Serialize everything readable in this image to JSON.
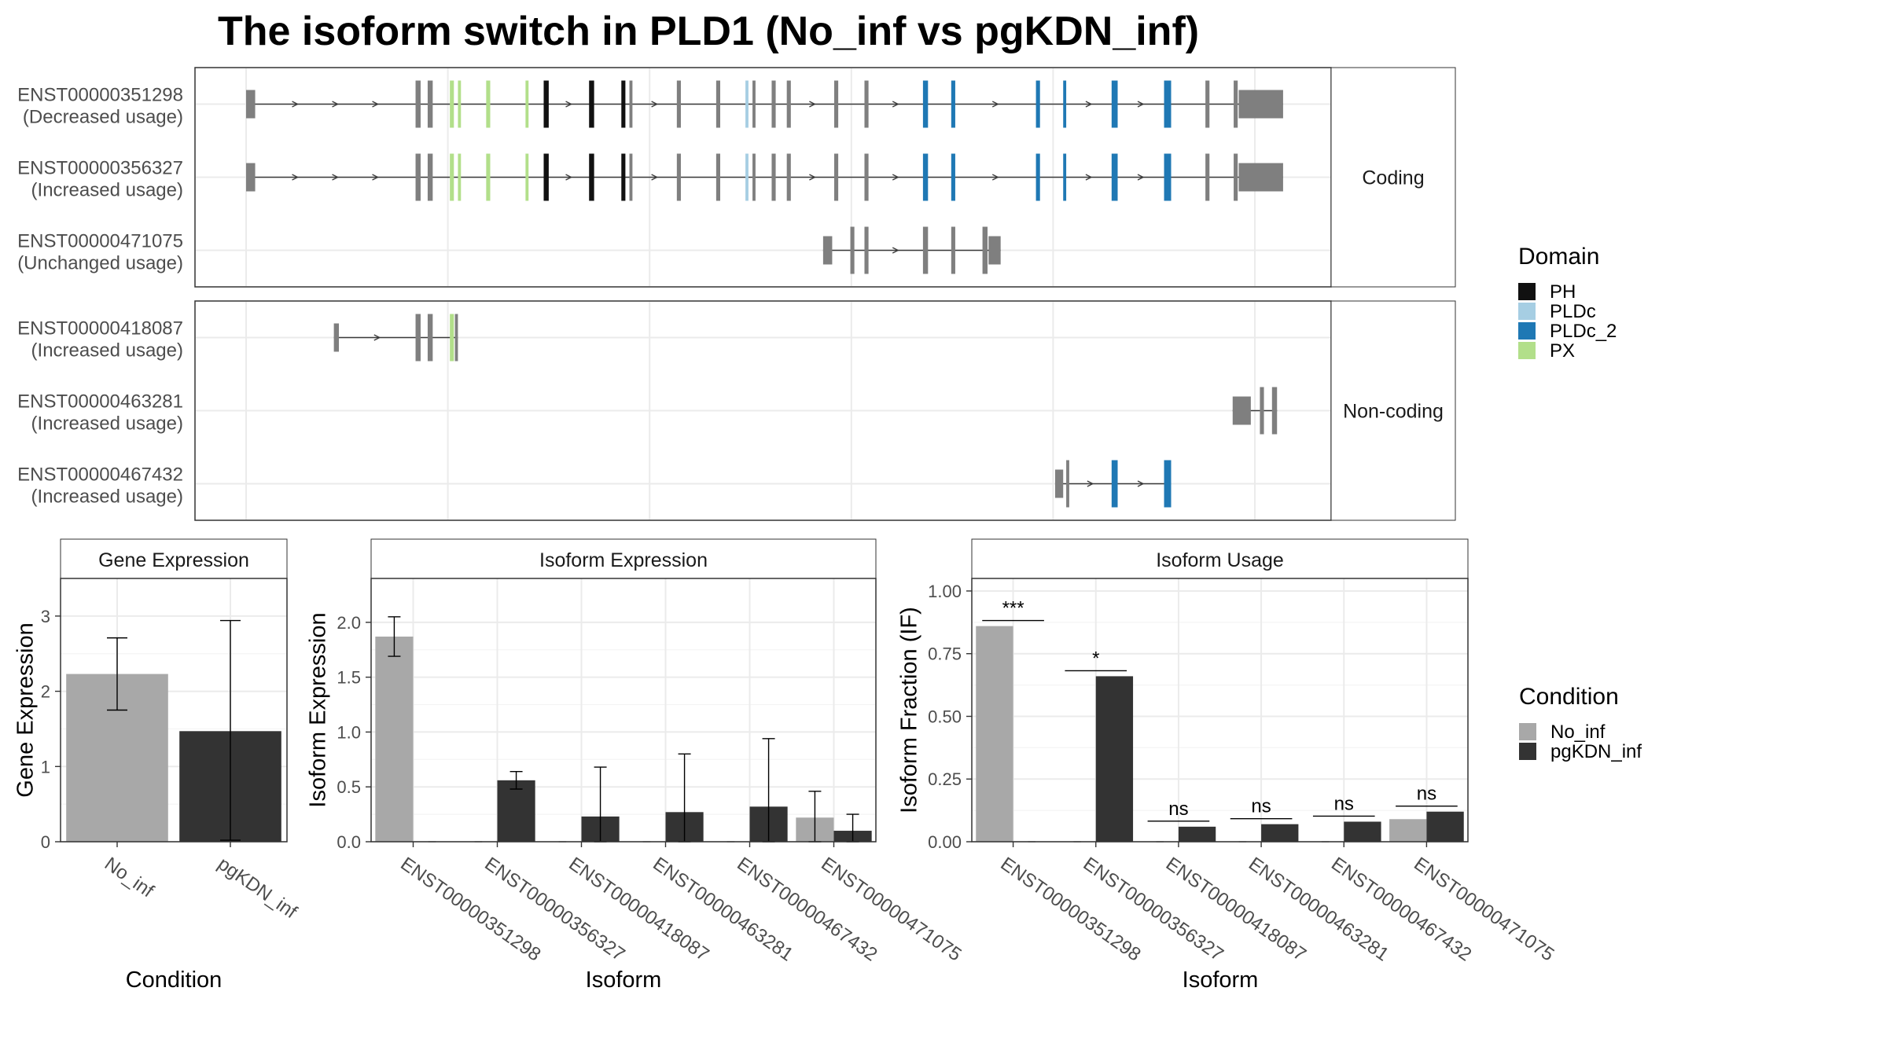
{
  "title": "The isoform switch in PLD1 (No_inf vs pgKDN_inf)",
  "colors": {
    "No_inf": "#a8a8a8",
    "pgKDN_inf": "#333333",
    "exon": "#7f7f7f",
    "intron": "#3a3a3a",
    "grid": "#ebebeb",
    "panel_border": "#333333",
    "strip_bg": "#ffffff",
    "PH": "#111111",
    "PLDc": "#a6cee3",
    "PLDc_2": "#1f78b4",
    "PX": "#b2df8a"
  },
  "structure": {
    "groups": [
      {
        "name": "Coding",
        "transcripts": [
          {
            "id": "ENST00000351298",
            "usage": "(Decreased usage)",
            "exons": [
              [
                0.0,
                0.9,
                "thin"
              ],
              [
                16.8,
                17.3,
                "n"
              ],
              [
                18.0,
                18.5,
                "n"
              ],
              [
                20.2,
                20.6,
                "PX"
              ],
              [
                21.0,
                21.3,
                "PX"
              ],
              [
                23.8,
                24.2,
                "PX"
              ],
              [
                27.7,
                28.0,
                "PX"
              ],
              [
                29.5,
                30.0,
                "PH"
              ],
              [
                34.0,
                34.5,
                "PH"
              ],
              [
                37.2,
                37.6,
                "PH"
              ],
              [
                38.0,
                38.3,
                "n"
              ],
              [
                42.7,
                43.1,
                "n"
              ],
              [
                46.6,
                47.0,
                "n"
              ],
              [
                49.5,
                49.8,
                "PLDc"
              ],
              [
                50.2,
                50.5,
                "n"
              ],
              [
                52.1,
                52.5,
                "n"
              ],
              [
                53.6,
                54.0,
                "n"
              ],
              [
                58.3,
                58.7,
                "n"
              ],
              [
                61.3,
                61.7,
                "n"
              ],
              [
                67.1,
                67.6,
                "PLDc_2"
              ],
              [
                69.9,
                70.3,
                "PLDc_2"
              ],
              [
                78.3,
                78.7,
                "PLDc_2"
              ],
              [
                81.0,
                81.3,
                "PLDc_2"
              ],
              [
                85.8,
                86.4,
                "PLDc_2"
              ],
              [
                91.0,
                91.7,
                "PLDc_2"
              ],
              [
                95.1,
                95.5,
                "n"
              ],
              [
                97.9,
                98.3,
                "n"
              ],
              [
                98.4,
                102.8,
                "thin"
              ]
            ]
          },
          {
            "id": "ENST00000356327",
            "usage": "(Increased usage)",
            "exons": [
              [
                0.0,
                0.9,
                "thin"
              ],
              [
                16.8,
                17.3,
                "n"
              ],
              [
                18.0,
                18.5,
                "n"
              ],
              [
                20.2,
                20.6,
                "PX"
              ],
              [
                21.0,
                21.3,
                "PX"
              ],
              [
                23.8,
                24.2,
                "PX"
              ],
              [
                27.7,
                28.0,
                "PX"
              ],
              [
                29.5,
                30.0,
                "PH"
              ],
              [
                34.0,
                34.5,
                "PH"
              ],
              [
                37.2,
                37.6,
                "PH"
              ],
              [
                38.0,
                38.3,
                "n"
              ],
              [
                42.7,
                43.1,
                "n"
              ],
              [
                46.6,
                47.0,
                "n"
              ],
              [
                49.5,
                49.8,
                "PLDc"
              ],
              [
                50.2,
                50.5,
                "n"
              ],
              [
                52.1,
                52.5,
                "n"
              ],
              [
                53.6,
                54.0,
                "n"
              ],
              [
                58.3,
                58.7,
                "n"
              ],
              [
                61.3,
                61.7,
                "n"
              ],
              [
                67.1,
                67.6,
                "PLDc_2"
              ],
              [
                69.9,
                70.3,
                "PLDc_2"
              ],
              [
                78.3,
                78.7,
                "PLDc_2"
              ],
              [
                81.0,
                81.3,
                "PLDc_2"
              ],
              [
                85.8,
                86.4,
                "PLDc_2"
              ],
              [
                91.0,
                91.7,
                "PLDc_2"
              ],
              [
                95.1,
                95.5,
                "n"
              ],
              [
                97.9,
                98.3,
                "n"
              ],
              [
                98.4,
                102.8,
                "thin"
              ]
            ]
          },
          {
            "id": "ENST00000471075",
            "usage": "(Unchanged usage)",
            "exons": [
              [
                57.2,
                58.1,
                "thin"
              ],
              [
                59.9,
                60.3,
                "n"
              ],
              [
                61.3,
                61.7,
                "n"
              ],
              [
                67.1,
                67.6,
                "n"
              ],
              [
                69.9,
                70.3,
                "n"
              ],
              [
                73.0,
                73.5,
                "n"
              ],
              [
                73.6,
                74.8,
                "thin"
              ]
            ]
          }
        ]
      },
      {
        "name": "Non-coding",
        "transcripts": [
          {
            "id": "ENST00000418087",
            "usage": "(Increased usage)",
            "exons": [
              [
                8.7,
                9.2,
                "thin"
              ],
              [
                16.8,
                17.3,
                "n"
              ],
              [
                18.0,
                18.5,
                "n"
              ],
              [
                20.2,
                20.6,
                "PX"
              ],
              [
                20.7,
                21.0,
                "n"
              ]
            ]
          },
          {
            "id": "ENST00000463281",
            "usage": "(Increased usage)",
            "exons": [
              [
                97.8,
                99.6,
                "thin"
              ],
              [
                100.5,
                100.9,
                "n"
              ],
              [
                101.7,
                102.2,
                "n"
              ]
            ]
          },
          {
            "id": "ENST00000467432",
            "usage": "(Increased usage)",
            "exons": [
              [
                80.2,
                81.0,
                "thin"
              ],
              [
                81.3,
                81.6,
                "n"
              ],
              [
                85.8,
                86.4,
                "PLDc_2"
              ],
              [
                91.0,
                91.7,
                "PLDc_2"
              ]
            ]
          }
        ]
      }
    ]
  },
  "legend_domain": {
    "title": "Domain",
    "items": [
      {
        "label": "PH",
        "color": "#111111"
      },
      {
        "label": "PLDc",
        "color": "#a6cee3"
      },
      {
        "label": "PLDc_2",
        "color": "#1f78b4"
      },
      {
        "label": "PX",
        "color": "#b2df8a"
      }
    ]
  },
  "legend_condition": {
    "title": "Condition",
    "items": [
      {
        "label": "No_inf",
        "color": "#a8a8a8"
      },
      {
        "label": "pgKDN_inf",
        "color": "#333333"
      }
    ]
  },
  "chart_data": [
    {
      "type": "bar",
      "title": "Gene Expression",
      "xlabel": "Condition",
      "ylabel": "Gene Expression",
      "ylim": [
        0,
        3.5
      ],
      "yticks": [
        0,
        1,
        2,
        3
      ],
      "categories": [
        "No_inf",
        "pgKDN_inf"
      ],
      "values": [
        2.23,
        1.47
      ],
      "errors": [
        [
          1.75,
          2.71
        ],
        [
          0.02,
          2.94
        ]
      ]
    },
    {
      "type": "bar",
      "title": "Isoform Expression",
      "xlabel": "Isoform",
      "ylabel": "Isoform Expression",
      "ylim": [
        0,
        2.4
      ],
      "yticks": [
        "0.0",
        "0.5",
        "1.0",
        "1.5",
        "2.0"
      ],
      "categories": [
        "ENST00000351298",
        "ENST00000356327",
        "ENST00000418087",
        "ENST00000463281",
        "ENST00000467432",
        "ENST00000471075"
      ],
      "series": [
        {
          "name": "No_inf",
          "values": [
            1.87,
            0,
            0,
            0,
            0,
            0.22
          ],
          "errors": [
            [
              1.69,
              2.05
            ],
            null,
            null,
            null,
            null,
            [
              0.0,
              0.46
            ]
          ]
        },
        {
          "name": "pgKDN_inf",
          "values": [
            0,
            0.56,
            0.23,
            0.27,
            0.32,
            0.1
          ],
          "errors": [
            null,
            [
              0.48,
              0.64
            ],
            [
              0.0,
              0.68
            ],
            [
              0.0,
              0.8
            ],
            [
              0.0,
              0.94
            ],
            [
              0.0,
              0.25
            ]
          ]
        }
      ]
    },
    {
      "type": "bar",
      "title": "Isoform Usage",
      "xlabel": "Isoform",
      "ylabel": "Isoform Fraction (IF)",
      "ylim": [
        0,
        1.05
      ],
      "yticks": [
        "0.00",
        "0.25",
        "0.50",
        "0.75",
        "1.00"
      ],
      "categories": [
        "ENST00000351298",
        "ENST00000356327",
        "ENST00000418087",
        "ENST00000463281",
        "ENST00000467432",
        "ENST00000471075"
      ],
      "series": [
        {
          "name": "No_inf",
          "values": [
            0.86,
            0,
            0,
            0,
            0,
            0.09
          ]
        },
        {
          "name": "pgKDN_inf",
          "values": [
            0,
            0.66,
            0.06,
            0.07,
            0.08,
            0.12
          ]
        }
      ],
      "significance": [
        "***",
        "*",
        "ns",
        "ns",
        "ns",
        "ns"
      ]
    }
  ]
}
